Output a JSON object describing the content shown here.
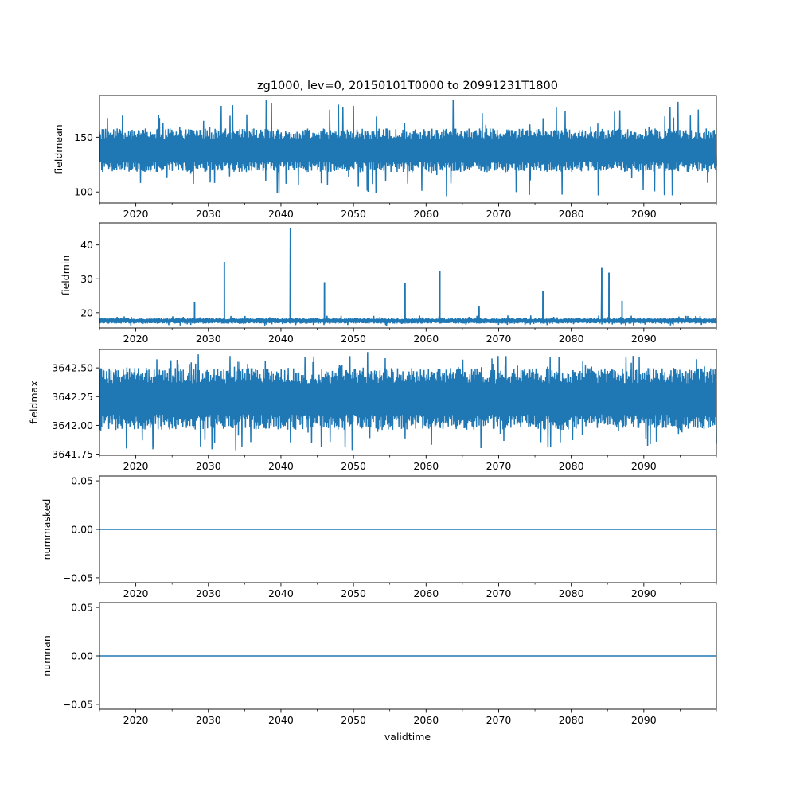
{
  "chart_data": [
    {
      "type": "line",
      "title": "zg1000, lev=0, 20150101T0000 to 20991231T1800",
      "xlabel": "",
      "ylabel": "fieldmean",
      "xlim": [
        2015.0,
        2100.0
      ],
      "ylim": [
        90,
        188
      ],
      "yticks": [
        100,
        150
      ],
      "ytick_labels": [
        "100",
        "150"
      ],
      "band": {
        "base_low": 118,
        "base_high": 158,
        "extreme_low": 94,
        "extreme_high": 186
      },
      "spikes": [],
      "color": "#1f77b4"
    },
    {
      "type": "line",
      "title": "",
      "xlabel": "",
      "ylabel": "fieldmin",
      "xlim": [
        2015.0,
        2100.0
      ],
      "ylim": [
        15.5,
        46.5
      ],
      "yticks": [
        20,
        30,
        40
      ],
      "ytick_labels": [
        "20",
        "30",
        "40"
      ],
      "band": {
        "base_low": 16.8,
        "base_high": 18.4,
        "extreme_low": 16.2,
        "extreme_high": 19.2
      },
      "spikes": [
        {
          "x": 2028.1,
          "y": 23.0
        },
        {
          "x": 2032.2,
          "y": 35.0
        },
        {
          "x": 2041.3,
          "y": 45.0
        },
        {
          "x": 2046.0,
          "y": 29.0
        },
        {
          "x": 2057.1,
          "y": 28.8
        },
        {
          "x": 2061.9,
          "y": 32.3
        },
        {
          "x": 2067.3,
          "y": 21.8
        },
        {
          "x": 2076.1,
          "y": 26.4
        },
        {
          "x": 2084.2,
          "y": 33.2
        },
        {
          "x": 2085.2,
          "y": 31.8
        },
        {
          "x": 2087.0,
          "y": 23.5
        }
      ],
      "color": "#1f77b4"
    },
    {
      "type": "line",
      "title": "",
      "xlabel": "",
      "ylabel": "fieldmax",
      "xlim": [
        2015.0,
        2100.0
      ],
      "ylim": [
        3641.74,
        3642.66
      ],
      "yticks": [
        3641.75,
        3642.0,
        3642.25,
        3642.5
      ],
      "ytick_labels": [
        "3641.75",
        "3642.00",
        "3642.25",
        "3642.50"
      ],
      "band": {
        "base_low": 3641.96,
        "base_high": 3642.5,
        "extreme_low": 3641.78,
        "extreme_high": 3642.64
      },
      "spikes": [],
      "color": "#1f77b4"
    },
    {
      "type": "line",
      "title": "",
      "xlabel": "",
      "ylabel": "nummasked",
      "xlim": [
        2015.0,
        2100.0
      ],
      "ylim": [
        -0.055,
        0.055
      ],
      "yticks": [
        -0.05,
        0.0,
        0.05
      ],
      "ytick_labels": [
        "−0.05",
        "0.00",
        "0.05"
      ],
      "constant": 0.0,
      "color": "#1f77b4"
    },
    {
      "type": "line",
      "title": "",
      "xlabel": "validtime",
      "ylabel": "numnan",
      "xlim": [
        2015.0,
        2100.0
      ],
      "ylim": [
        -0.055,
        0.055
      ],
      "yticks": [
        -0.05,
        0.0,
        0.05
      ],
      "ytick_labels": [
        "−0.05",
        "0.00",
        "0.05"
      ],
      "constant": 0.0,
      "color": "#1f77b4"
    }
  ],
  "x_axis": {
    "major_ticks": [
      2020,
      2030,
      2040,
      2050,
      2060,
      2070,
      2080,
      2090
    ],
    "major_labels": [
      "2020",
      "2030",
      "2040",
      "2050",
      "2060",
      "2070",
      "2080",
      "2090"
    ],
    "minor_ticks": [
      2015,
      2025,
      2035,
      2045,
      2055,
      2065,
      2075,
      2085,
      2095,
      2100
    ]
  }
}
